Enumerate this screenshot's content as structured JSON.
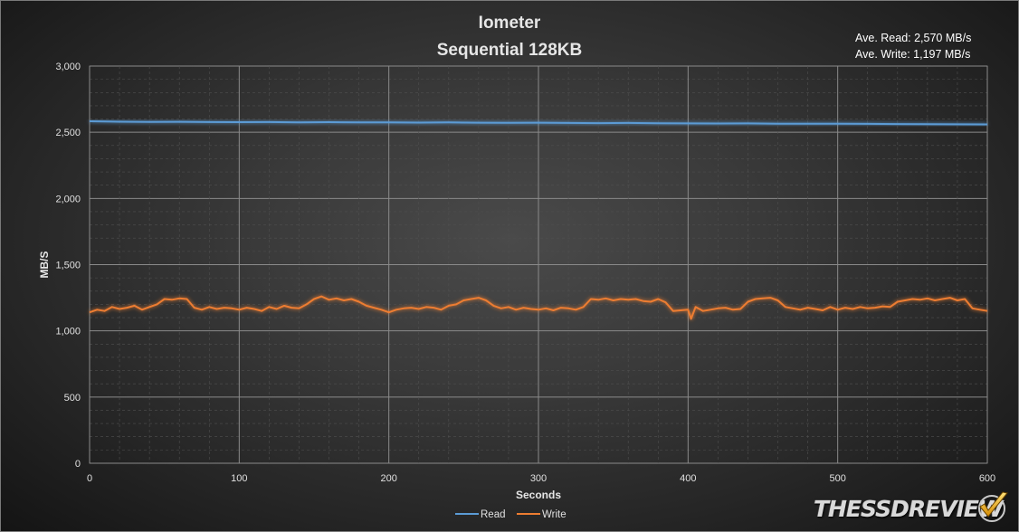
{
  "chart_data": {
    "type": "line",
    "title": "Iometer",
    "subtitle": "Sequential 128KB",
    "annotations": [
      "Ave. Read: 2,570 MB/s",
      "Ave. Write: 1,197 MB/s"
    ],
    "xlabel": "Seconds",
    "ylabel": "MB/S",
    "xlim": [
      0,
      600
    ],
    "ylim": [
      0,
      3000
    ],
    "x_ticks": [
      "0",
      "100",
      "200",
      "300",
      "400",
      "500",
      "600"
    ],
    "y_ticks": [
      "0",
      "500",
      "1,000",
      "1,500",
      "2,000",
      "2,500",
      "3,000"
    ],
    "grid": true,
    "legend_position": "bottom",
    "series": [
      {
        "name": "Read",
        "color": "#5b9bd5",
        "x": [
          0,
          20,
          40,
          60,
          80,
          100,
          120,
          140,
          160,
          180,
          200,
          220,
          240,
          260,
          280,
          300,
          320,
          340,
          360,
          380,
          400,
          420,
          440,
          460,
          480,
          500,
          520,
          540,
          560,
          580,
          600
        ],
        "values": [
          2583,
          2580,
          2578,
          2579,
          2577,
          2576,
          2577,
          2575,
          2576,
          2574,
          2574,
          2573,
          2574,
          2572,
          2571,
          2572,
          2570,
          2569,
          2570,
          2568,
          2567,
          2566,
          2567,
          2565,
          2564,
          2565,
          2563,
          2562,
          2561,
          2560,
          2559
        ]
      },
      {
        "name": "Write",
        "color": "#ed7d31",
        "x": [
          0,
          5,
          10,
          15,
          20,
          25,
          30,
          35,
          40,
          45,
          50,
          55,
          60,
          65,
          70,
          75,
          80,
          85,
          90,
          95,
          100,
          105,
          110,
          115,
          120,
          125,
          130,
          135,
          140,
          145,
          150,
          155,
          160,
          165,
          170,
          175,
          180,
          185,
          190,
          195,
          200,
          205,
          210,
          215,
          220,
          225,
          230,
          235,
          240,
          245,
          250,
          255,
          260,
          265,
          270,
          275,
          280,
          285,
          290,
          295,
          300,
          305,
          310,
          315,
          320,
          325,
          330,
          335,
          340,
          345,
          350,
          355,
          360,
          365,
          370,
          375,
          380,
          385,
          390,
          395,
          400,
          402,
          405,
          410,
          415,
          420,
          425,
          430,
          435,
          440,
          445,
          450,
          455,
          460,
          465,
          470,
          475,
          480,
          485,
          490,
          495,
          500,
          505,
          510,
          515,
          520,
          525,
          530,
          535,
          540,
          545,
          550,
          555,
          560,
          565,
          570,
          575,
          580,
          585,
          590,
          595,
          600
        ],
        "values": [
          1140,
          1160,
          1150,
          1180,
          1165,
          1175,
          1190,
          1160,
          1180,
          1200,
          1240,
          1235,
          1245,
          1240,
          1175,
          1160,
          1180,
          1165,
          1175,
          1170,
          1160,
          1175,
          1165,
          1150,
          1180,
          1165,
          1190,
          1175,
          1170,
          1200,
          1240,
          1260,
          1235,
          1245,
          1230,
          1240,
          1220,
          1190,
          1175,
          1160,
          1140,
          1160,
          1170,
          1175,
          1165,
          1180,
          1175,
          1160,
          1190,
          1200,
          1230,
          1240,
          1250,
          1230,
          1190,
          1170,
          1180,
          1160,
          1175,
          1165,
          1160,
          1170,
          1155,
          1175,
          1170,
          1160,
          1180,
          1240,
          1235,
          1245,
          1230,
          1240,
          1235,
          1240,
          1225,
          1220,
          1240,
          1215,
          1150,
          1155,
          1160,
          1090,
          1180,
          1150,
          1160,
          1170,
          1175,
          1160,
          1165,
          1220,
          1240,
          1245,
          1250,
          1230,
          1180,
          1170,
          1160,
          1175,
          1165,
          1155,
          1180,
          1160,
          1175,
          1165,
          1180,
          1170,
          1175,
          1185,
          1180,
          1220,
          1230,
          1240,
          1235,
          1245,
          1230,
          1240,
          1250,
          1230,
          1240,
          1170,
          1160,
          1150
        ]
      }
    ]
  },
  "logo_text": "THESSDREVIEW"
}
